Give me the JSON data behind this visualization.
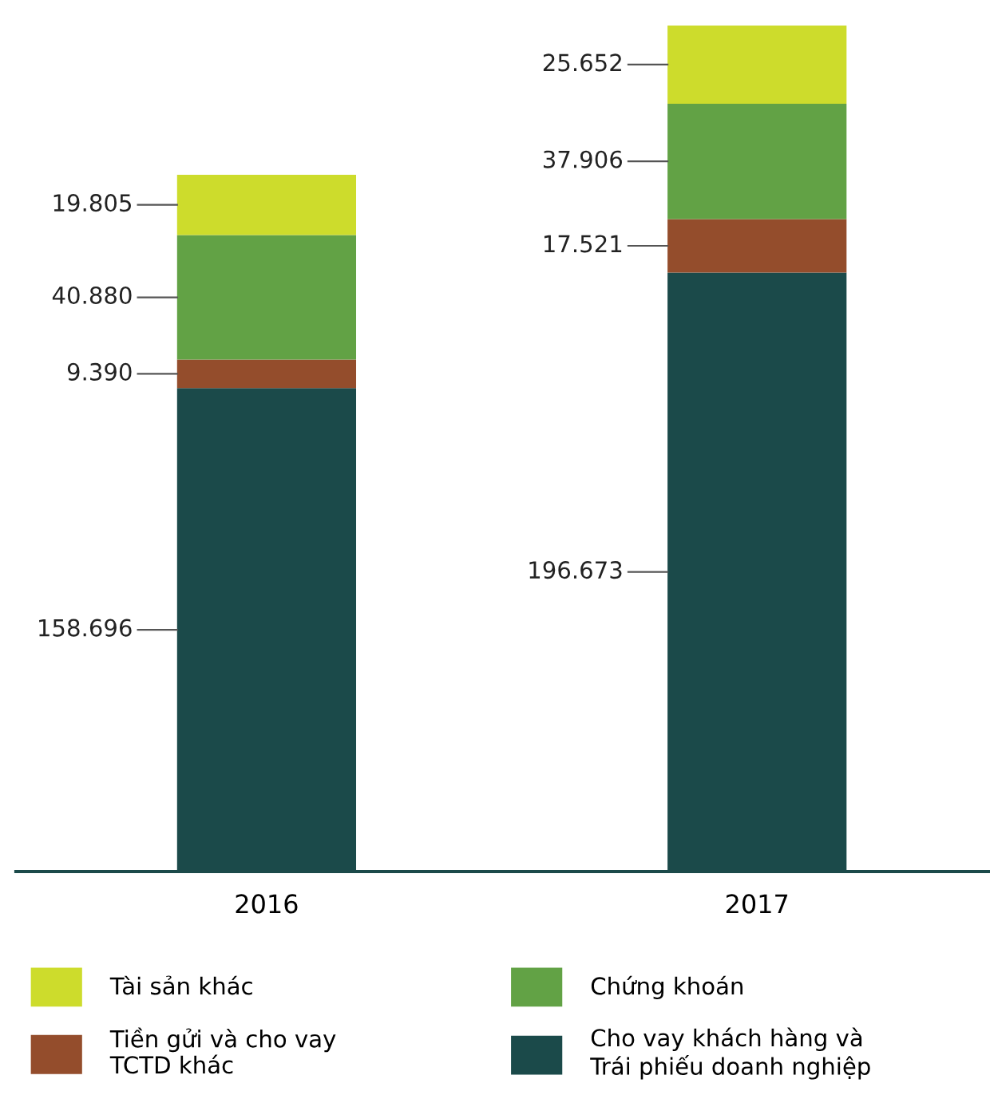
{
  "chart_data": {
    "type": "bar",
    "stacked": true,
    "categories": [
      "2016",
      "2017"
    ],
    "series": [
      {
        "name": "Cho vay khách hàng và\nTrái phiếu doanh nghiệp",
        "color": "#1b4a4a",
        "values": [
          158696,
          196673
        ],
        "value_labels": [
          "158.696",
          "196.673"
        ]
      },
      {
        "name": "Tiền gửi và cho vay\nTCTD khác",
        "color": "#944d2c",
        "values": [
          9390,
          17521
        ],
        "value_labels": [
          "9.390",
          "17.521"
        ]
      },
      {
        "name": "Chứng khoán",
        "color": "#62a245",
        "values": [
          40880,
          37906
        ],
        "value_labels": [
          "40.880",
          "37.906"
        ]
      },
      {
        "name": "Tài sản khác",
        "color": "#cddc2c",
        "values": [
          19805,
          25652
        ],
        "value_labels": [
          "19.805",
          "25.652"
        ]
      }
    ],
    "legend": "bottom",
    "tick_labels": "x",
    "grid": false
  }
}
